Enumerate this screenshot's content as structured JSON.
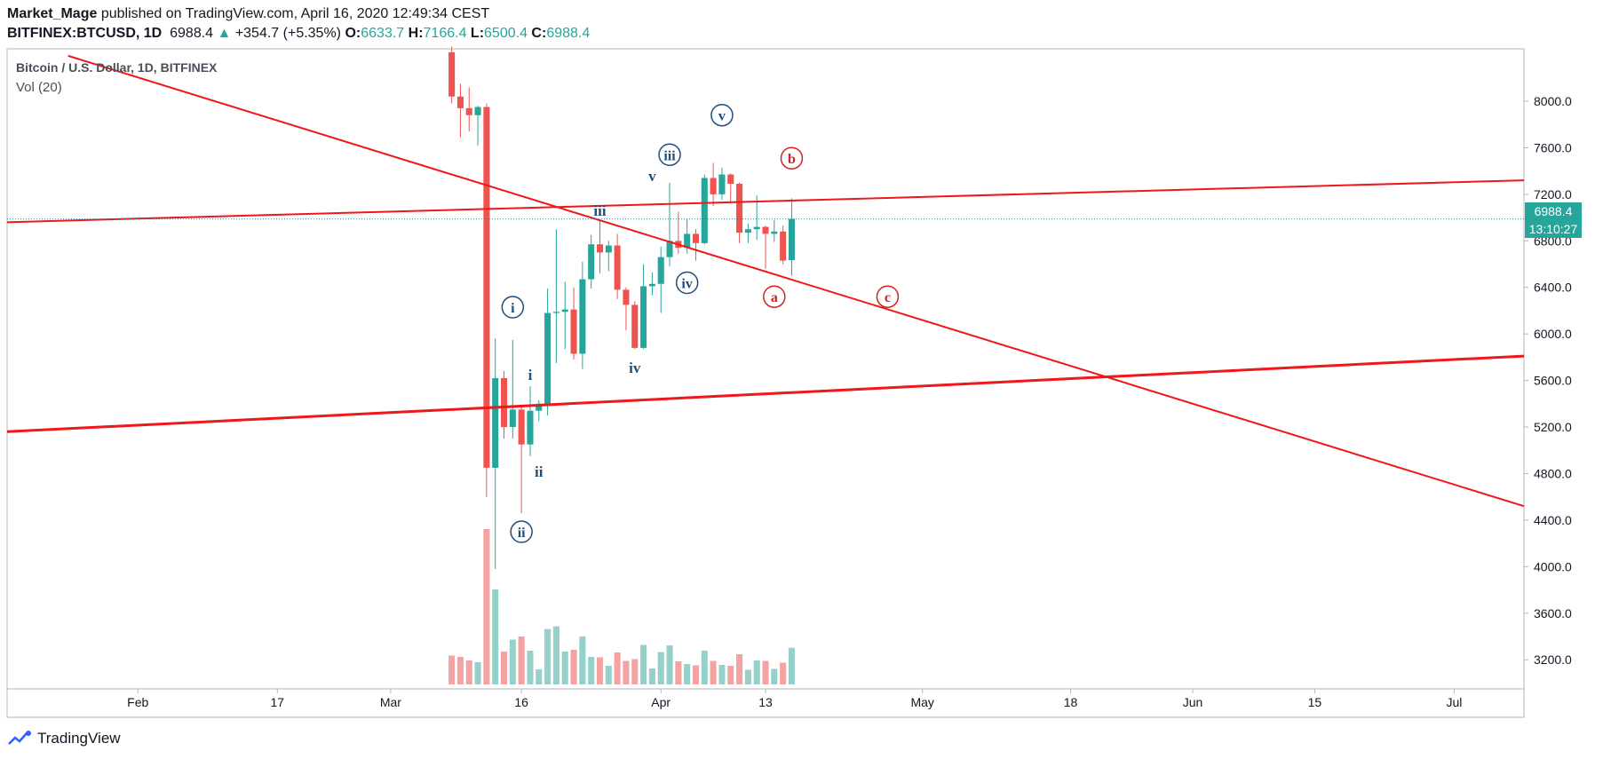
{
  "header": {
    "author": "Market_Mage",
    "published_text": "published on TradingView.com, April 16, 2020 12:49:34 CEST",
    "symbol": "BITFINEX:BTCUSD, 1D",
    "last": "6988.4",
    "change": "+354.7 (+5.35%)",
    "o_label": "O:",
    "o": "6633.7",
    "h_label": "H:",
    "h": "7166.4",
    "l_label": "L:",
    "l": "6500.4",
    "c_label": "C:",
    "c": "6988.4"
  },
  "legend": {
    "series_title": "Bitcoin / U.S. Dollar, 1D, BITFINEX",
    "volume_title": "Vol (20)"
  },
  "price_badge": {
    "price": "6988.4",
    "countdown": "13:10:27"
  },
  "footer": {
    "brand": "TradingView"
  },
  "colors": {
    "up": "#26a69a",
    "down": "#ef5350",
    "up_volume": "#95d1ca",
    "down_volume": "#f5a3a2",
    "trendline": "#f0171a",
    "wave_blue": "#1f4e79",
    "wave_red": "#d32020",
    "price_line": "#2a8a9a"
  },
  "chart_data": {
    "type": "candlestick",
    "timeframe": "1D",
    "y_ticks": [
      "8000.0",
      "7600.0",
      "7200.0",
      "6800.0",
      "6400.0",
      "6000.0",
      "5600.0",
      "5200.0",
      "4800.0",
      "4400.0",
      "4000.0",
      "3600.0",
      "3200.0"
    ],
    "x_ticks": [
      {
        "label": "Feb",
        "date": "2020-02-01"
      },
      {
        "label": "17",
        "date": "2020-02-17"
      },
      {
        "label": "Mar",
        "date": "2020-03-01"
      },
      {
        "label": "16",
        "date": "2020-03-16"
      },
      {
        "label": "Apr",
        "date": "2020-04-01"
      },
      {
        "label": "13",
        "date": "2020-04-13"
      },
      {
        "label": "May",
        "date": "2020-05-01"
      },
      {
        "label": "18",
        "date": "2020-05-18"
      },
      {
        "label": "Jun",
        "date": "2020-06-01"
      },
      {
        "label": "15",
        "date": "2020-06-15"
      },
      {
        "label": "Jul",
        "date": "2020-07-01"
      }
    ],
    "ylim": [
      2950,
      8450
    ],
    "xlim": [
      "2020-01-17",
      "2020-07-09"
    ],
    "candles": [
      {
        "date": "2020-03-08",
        "o": 8420,
        "h": 8470,
        "l": 7980,
        "c": 8040
      },
      {
        "date": "2020-03-09",
        "o": 8040,
        "h": 8150,
        "l": 7690,
        "c": 7940
      },
      {
        "date": "2020-03-10",
        "o": 7940,
        "h": 8120,
        "l": 7740,
        "c": 7880
      },
      {
        "date": "2020-03-11",
        "o": 7880,
        "h": 7960,
        "l": 7620,
        "c": 7950
      },
      {
        "date": "2020-03-12",
        "o": 7950,
        "h": 7980,
        "l": 4600,
        "c": 4850
      },
      {
        "date": "2020-03-13",
        "o": 4850,
        "h": 5960,
        "l": 3980,
        "c": 5620
      },
      {
        "date": "2020-03-14",
        "o": 5620,
        "h": 5680,
        "l": 5100,
        "c": 5200
      },
      {
        "date": "2020-03-15",
        "o": 5200,
        "h": 5950,
        "l": 5100,
        "c": 5350
      },
      {
        "date": "2020-03-16",
        "o": 5350,
        "h": 5380,
        "l": 4460,
        "c": 5050
      },
      {
        "date": "2020-03-17",
        "o": 5050,
        "h": 5550,
        "l": 4950,
        "c": 5340
      },
      {
        "date": "2020-03-18",
        "o": 5340,
        "h": 5430,
        "l": 5250,
        "c": 5400
      },
      {
        "date": "2020-03-19",
        "o": 5400,
        "h": 6390,
        "l": 5300,
        "c": 6180
      },
      {
        "date": "2020-03-20",
        "o": 6180,
        "h": 6900,
        "l": 5750,
        "c": 6190
      },
      {
        "date": "2020-03-21",
        "o": 6190,
        "h": 6450,
        "l": 5870,
        "c": 6210
      },
      {
        "date": "2020-03-22",
        "o": 6210,
        "h": 6400,
        "l": 5780,
        "c": 5830
      },
      {
        "date": "2020-03-23",
        "o": 5830,
        "h": 6620,
        "l": 5700,
        "c": 6470
      },
      {
        "date": "2020-03-24",
        "o": 6470,
        "h": 6850,
        "l": 6390,
        "c": 6770
      },
      {
        "date": "2020-03-25",
        "o": 6770,
        "h": 6970,
        "l": 6520,
        "c": 6700
      },
      {
        "date": "2020-03-26",
        "o": 6700,
        "h": 6800,
        "l": 6540,
        "c": 6760
      },
      {
        "date": "2020-03-27",
        "o": 6760,
        "h": 6860,
        "l": 6300,
        "c": 6380
      },
      {
        "date": "2020-03-28",
        "o": 6380,
        "h": 6400,
        "l": 6030,
        "c": 6250
      },
      {
        "date": "2020-03-29",
        "o": 6250,
        "h": 6280,
        "l": 5870,
        "c": 5880
      },
      {
        "date": "2020-03-30",
        "o": 5880,
        "h": 6600,
        "l": 5870,
        "c": 6410
      },
      {
        "date": "2020-03-31",
        "o": 6410,
        "h": 6530,
        "l": 6330,
        "c": 6430
      },
      {
        "date": "2020-04-01",
        "o": 6430,
        "h": 6750,
        "l": 6180,
        "c": 6660
      },
      {
        "date": "2020-04-02",
        "o": 6660,
        "h": 7300,
        "l": 6580,
        "c": 6800
      },
      {
        "date": "2020-04-03",
        "o": 6800,
        "h": 7050,
        "l": 6690,
        "c": 6740
      },
      {
        "date": "2020-04-04",
        "o": 6740,
        "h": 6990,
        "l": 6690,
        "c": 6860
      },
      {
        "date": "2020-04-05",
        "o": 6860,
        "h": 6900,
        "l": 6630,
        "c": 6780
      },
      {
        "date": "2020-04-06",
        "o": 6780,
        "h": 7370,
        "l": 6770,
        "c": 7340
      },
      {
        "date": "2020-04-07",
        "o": 7340,
        "h": 7470,
        "l": 7100,
        "c": 7200
      },
      {
        "date": "2020-04-08",
        "o": 7200,
        "h": 7430,
        "l": 7150,
        "c": 7370
      },
      {
        "date": "2020-04-09",
        "o": 7370,
        "h": 7380,
        "l": 7120,
        "c": 7290
      },
      {
        "date": "2020-04-10",
        "o": 7290,
        "h": 7300,
        "l": 6780,
        "c": 6870
      },
      {
        "date": "2020-04-11",
        "o": 6870,
        "h": 6950,
        "l": 6780,
        "c": 6900
      },
      {
        "date": "2020-04-12",
        "o": 6900,
        "h": 7190,
        "l": 6810,
        "c": 6920
      },
      {
        "date": "2020-04-13",
        "o": 6920,
        "h": 6930,
        "l": 6560,
        "c": 6860
      },
      {
        "date": "2020-04-14",
        "o": 6860,
        "h": 6980,
        "l": 6790,
        "c": 6880
      },
      {
        "date": "2020-04-15",
        "o": 6880,
        "h": 6930,
        "l": 6600,
        "c": 6630
      },
      {
        "date": "2020-04-16",
        "o": 6633.7,
        "h": 7166.4,
        "l": 6500.4,
        "c": 6988.4
      }
    ],
    "volume_note": "relative volume bars, Vol (20)",
    "trendlines": [
      {
        "name": "descending",
        "from": {
          "date": "2020-01-24",
          "price": 8390
        },
        "to": {
          "date": "2020-07-09",
          "price": 4520
        }
      },
      {
        "name": "upper",
        "from": {
          "date": "2020-01-17",
          "price": 6960
        },
        "to": {
          "date": "2020-07-09",
          "price": 7320
        }
      },
      {
        "name": "lower",
        "from": {
          "date": "2020-01-17",
          "price": 5160
        },
        "to": {
          "date": "2020-07-09",
          "price": 5810
        }
      }
    ],
    "price_line": 6988.4,
    "wave_labels": [
      {
        "text": "i",
        "circled": true,
        "color": "blue",
        "date": "2020-03-15",
        "price": 6230
      },
      {
        "text": "ii",
        "circled": true,
        "color": "blue",
        "date": "2020-03-16",
        "price": 4300
      },
      {
        "text": "iii",
        "circled": true,
        "color": "blue",
        "date": "2020-04-02",
        "price": 7540
      },
      {
        "text": "iv",
        "circled": true,
        "color": "blue",
        "date": "2020-04-04",
        "price": 6440
      },
      {
        "text": "v",
        "circled": true,
        "color": "blue",
        "date": "2020-04-08",
        "price": 7880
      },
      {
        "text": "i",
        "circled": false,
        "color": "blue",
        "date": "2020-03-17",
        "price": 5650
      },
      {
        "text": "ii",
        "circled": false,
        "color": "blue",
        "date": "2020-03-18",
        "price": 4820
      },
      {
        "text": "iii",
        "circled": false,
        "color": "blue",
        "date": "2020-03-25",
        "price": 7060
      },
      {
        "text": "iv",
        "circled": false,
        "color": "blue",
        "date": "2020-03-29",
        "price": 5710
      },
      {
        "text": "v",
        "circled": false,
        "color": "blue",
        "date": "2020-03-31",
        "price": 7360
      },
      {
        "text": "a",
        "circled": true,
        "color": "red",
        "date": "2020-04-14",
        "price": 6320
      },
      {
        "text": "b",
        "circled": true,
        "color": "red",
        "date": "2020-04-16",
        "price": 7510
      },
      {
        "text": "c",
        "circled": true,
        "color": "red",
        "date": "2020-04-27",
        "price": 6320
      }
    ]
  }
}
